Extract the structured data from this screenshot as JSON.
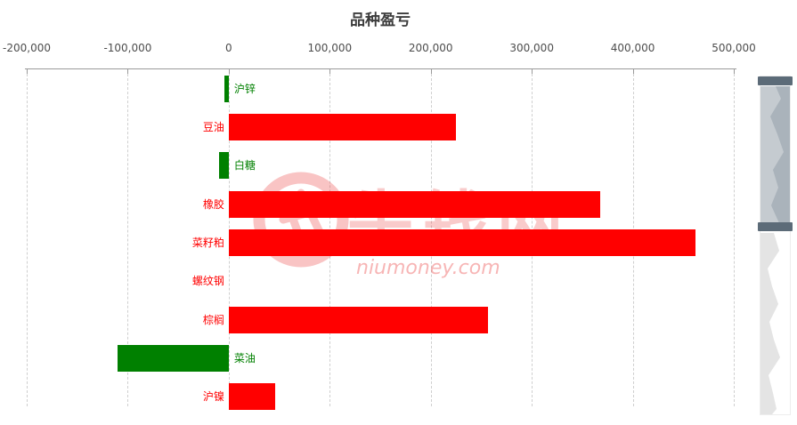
{
  "title": "品种盈亏",
  "watermark": {
    "text": "牛钱网",
    "subtext": "niumoney.com"
  },
  "chart_data": {
    "type": "bar",
    "orientation": "horizontal",
    "title": "品种盈亏",
    "categories": [
      "沪锌",
      "豆油",
      "白糖",
      "橡胶",
      "菜籽粕",
      "螺纹钢",
      "棕榈",
      "菜油",
      "沪镍"
    ],
    "values": [
      -4000,
      225000,
      -10000,
      368000,
      462000,
      0,
      257000,
      -110000,
      46000
    ],
    "xlim": [
      -200000,
      500000
    ],
    "x_ticks": [
      -200000,
      -100000,
      0,
      100000,
      200000,
      300000,
      400000,
      500000
    ],
    "x_tick_labels": [
      "-200,000",
      "-100,000",
      "0",
      "100,000",
      "200,000",
      "300,000",
      "400,000",
      "500,000"
    ],
    "xlabel": "",
    "ylabel": "",
    "grid": "dashed-vertical-gridlines",
    "legend": "none",
    "positive_color": "#ff0000",
    "negative_color": "#008000"
  },
  "colors": {
    "positive_bar": "#ff0000",
    "negative_bar": "#008000",
    "axis": "#9a9a9a",
    "gridline": "#cfcfcf",
    "title_text": "#3c3c3c",
    "tick_text": "#4d4d4d",
    "watermark_pink": "#f08080",
    "slider_handle": "#5c6b78",
    "slider_selected_fill": "#c5cbd0",
    "slider_selected_shadow": "#aab3bb",
    "slider_unselected_shadow": "#e4e4e4"
  },
  "datazoom": {
    "position": "right",
    "orientation": "vertical"
  }
}
